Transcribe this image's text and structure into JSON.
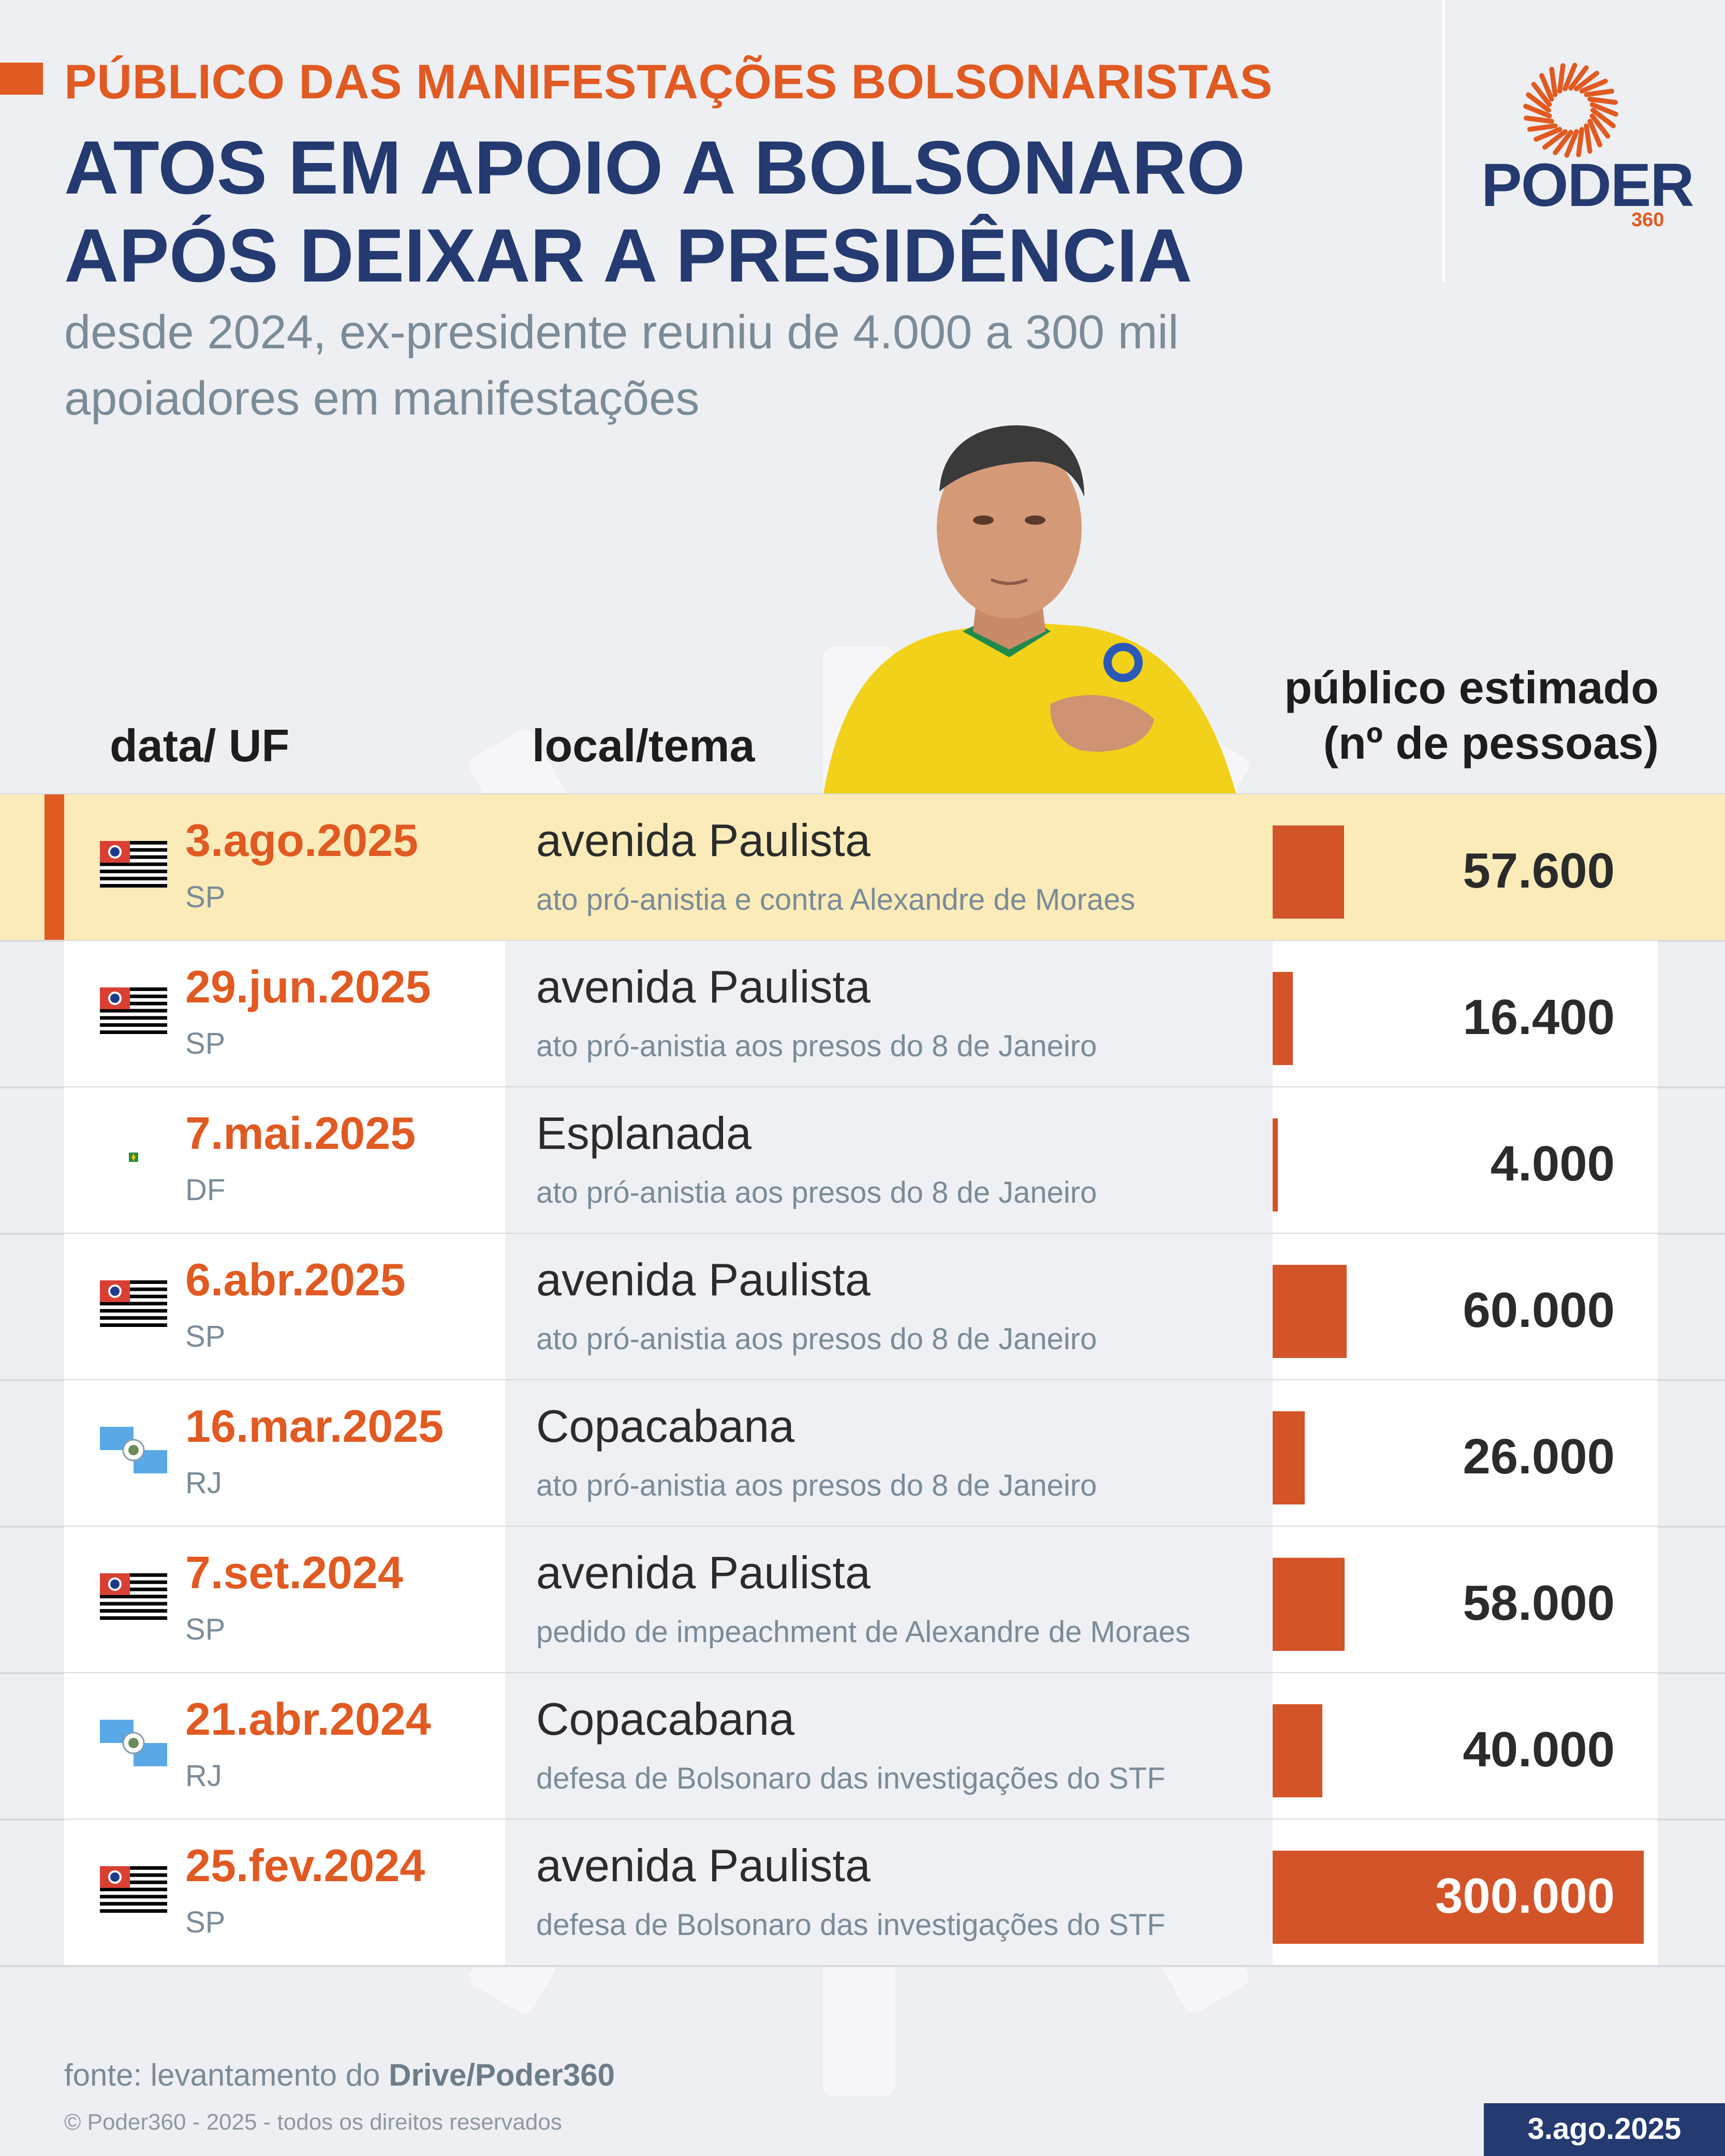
{
  "header": {
    "kicker": "PÚBLICO DAS MANIFESTAÇÕES BOLSONARISTAS",
    "title_line1": "ATOS EM APOIO A BOLSONARO",
    "title_line2": "APÓS DEIXAR A PRESIDÊNCIA",
    "subtitle_line1": "desde 2024, ex-presidente reuniu de 4.000 a 300 mil",
    "subtitle_line2": "apoiadores em manifestações"
  },
  "logo": {
    "name": "PODER",
    "sub": "360",
    "icon": "sun-rays-icon"
  },
  "columns": {
    "date": "data/ UF",
    "local": "local/tema",
    "public_line1": "público estimado",
    "public_line2": "(nº de pessoas)"
  },
  "chart_data": {
    "type": "bar",
    "orientation": "horizontal",
    "highlighted_row": 0,
    "bar_color": "#d35428",
    "xlim": [
      0,
      300000
    ],
    "rows": [
      {
        "date": "3.ago.2025",
        "uf": "SP",
        "local": "avenida Paulista",
        "tema": "ato pró-anistia e contra Alexandre de Moraes",
        "value": 57600,
        "label": "57.600",
        "flag": "sp-flag-icon"
      },
      {
        "date": "29.jun.2025",
        "uf": "SP",
        "local": "avenida Paulista",
        "tema": "ato pró-anistia aos presos do 8 de Janeiro",
        "value": 16400,
        "label": "16.400",
        "flag": "sp-flag-icon"
      },
      {
        "date": "7.mai.2025",
        "uf": "DF",
        "local": "Esplanada",
        "tema": "ato pró-anistia aos presos do 8 de Janeiro",
        "value": 4000,
        "label": "4.000",
        "flag": "df-flag-icon"
      },
      {
        "date": "6.abr.2025",
        "uf": "SP",
        "local": "avenida Paulista",
        "tema": "ato pró-anistia aos presos do 8 de Janeiro",
        "value": 60000,
        "label": "60.000",
        "flag": "sp-flag-icon"
      },
      {
        "date": "16.mar.2025",
        "uf": "RJ",
        "local": "Copacabana",
        "tema": "ato pró-anistia aos presos do 8 de Janeiro",
        "value": 26000,
        "label": "26.000",
        "flag": "rj-flag-icon"
      },
      {
        "date": "7.set.2024",
        "uf": "SP",
        "local": "avenida Paulista",
        "tema": "pedido de impeachment de Alexandre de Moraes",
        "value": 58000,
        "label": "58.000",
        "flag": "sp-flag-icon"
      },
      {
        "date": "21.abr.2024",
        "uf": "RJ",
        "local": "Copacabana",
        "tema": "defesa de Bolsonaro das investigações do STF",
        "value": 40000,
        "label": "40.000",
        "flag": "rj-flag-icon"
      },
      {
        "date": "25.fev.2024",
        "uf": "SP",
        "local": "avenida Paulista",
        "tema": "defesa de Bolsonaro das investigações do STF",
        "value": 300000,
        "label": "300.000",
        "flag": "sp-flag-icon"
      }
    ]
  },
  "footer": {
    "fonte_prefix": "fonte: levantamento do ",
    "fonte_bold": "Drive/Poder360",
    "copyright": "© Poder360 - 2025 - todos os direitos reservados",
    "date_badge": "3.ago.2025"
  },
  "colors": {
    "accent": "#e05a22",
    "navy": "#243a70",
    "highlight": "#faebb9"
  }
}
